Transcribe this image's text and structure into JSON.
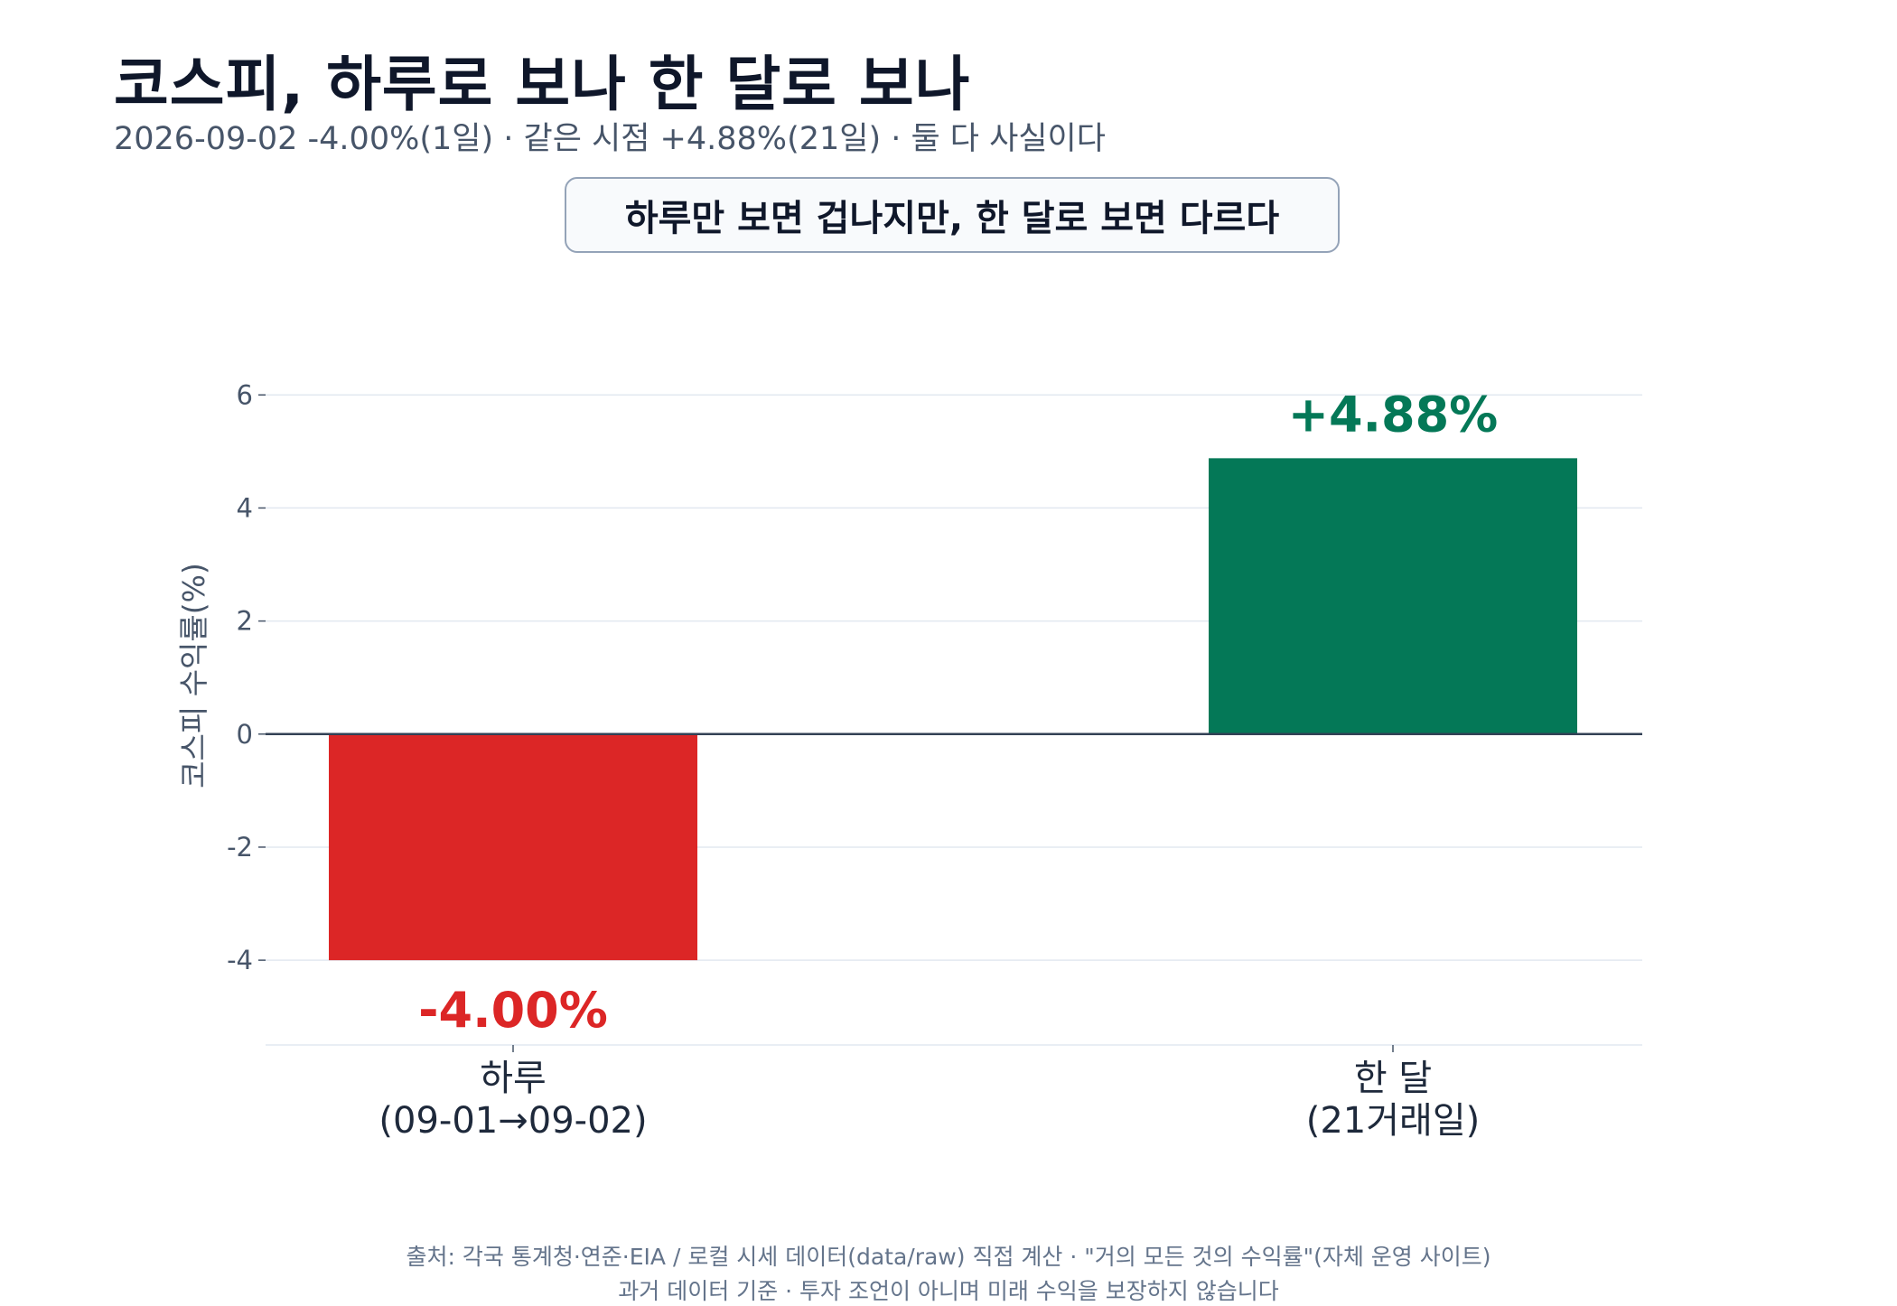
{
  "header": {
    "title": "코스피, 하루로 보나 한 달로 보나",
    "subtitle": "2026-09-02 -4.00%(1일) · 같은 시점 +4.88%(21일) · 둘 다 사실이다"
  },
  "callout": "하루만 보면 겁나지만, 한 달로 보면 다르다",
  "chart_data": {
    "type": "bar",
    "categories": [
      [
        "하루",
        "(09-01→09-02)"
      ],
      [
        "한 달",
        "(21거래일)"
      ]
    ],
    "values": [
      -4.0,
      4.88
    ],
    "data_labels": [
      "-4.00%",
      "+4.88%"
    ],
    "colors": [
      "#dc2626",
      "#047857"
    ],
    "ylabel": "코스피 수익률(%)",
    "yticks": [
      -4,
      -2,
      0,
      2,
      4,
      6
    ],
    "ytick_labels": [
      "-4",
      "-2",
      "0",
      "2",
      "4",
      "6"
    ],
    "ylim": [
      -5.5,
      6.1
    ],
    "grid": true,
    "zero_line": true
  },
  "footer": {
    "line1": "출처: 각국 통계청·연준·EIA / 로컬 시세 데이터(data/raw) 직접 계산 · \"거의 모든 것의 수익률\"(자체 운영 사이트)",
    "line2": "과거 데이터 기준 · 투자 조언이 아니며 미래 수익을 보장하지 않습니다"
  }
}
